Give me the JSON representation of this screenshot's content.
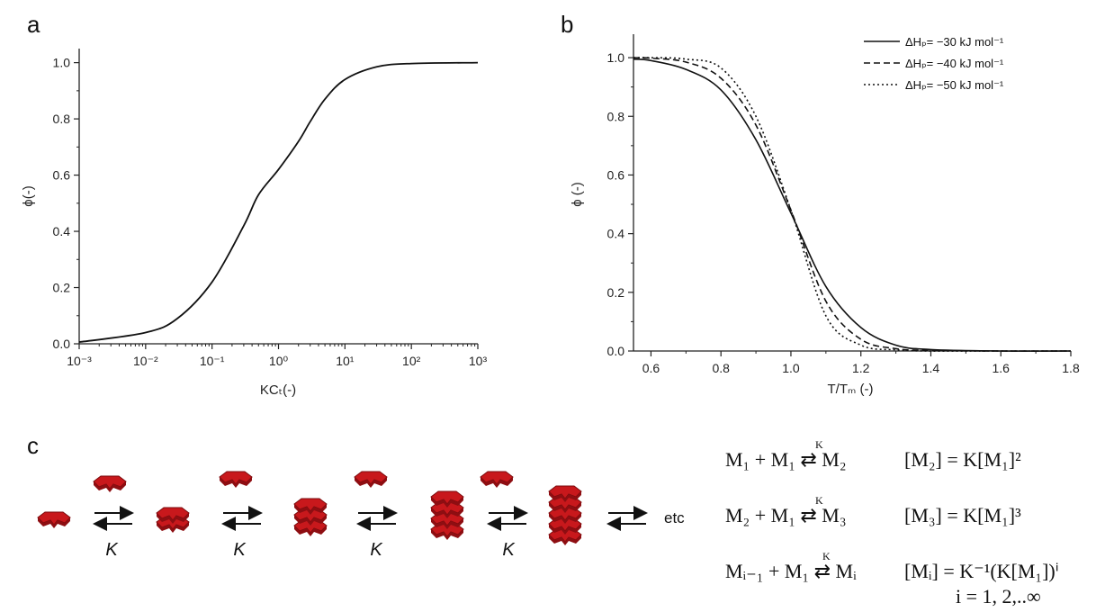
{
  "panels": {
    "a": "a",
    "b": "b",
    "c": "c"
  },
  "chart_data": [
    {
      "type": "line",
      "panel": "a",
      "xscale": "log",
      "xlim": [
        0.001,
        1000
      ],
      "ylim": [
        0,
        1.05
      ],
      "xlabel": "KCₜ(-)",
      "ylabel": "ϕ(-)",
      "xticks": [
        "10⁻³",
        "10⁻²",
        "10⁻¹",
        "10⁰",
        "10¹",
        "10²",
        "10³"
      ],
      "yticks": [
        "0.0",
        "0.2",
        "0.4",
        "0.6",
        "0.8",
        "1.0"
      ],
      "series": [
        {
          "x": [
            0.001,
            0.01,
            0.03,
            0.1,
            0.3,
            0.5,
            1,
            2,
            3,
            5,
            10,
            30,
            100,
            1000
          ],
          "y": [
            0.006,
            0.04,
            0.09,
            0.22,
            0.42,
            0.53,
            0.62,
            0.72,
            0.79,
            0.87,
            0.94,
            0.985,
            0.997,
            1.0
          ]
        }
      ]
    },
    {
      "type": "line",
      "panel": "b",
      "xlim": [
        0.55,
        1.8
      ],
      "ylim": [
        0,
        1.08
      ],
      "xlabel": "T/Tₘ (-)",
      "ylabel": "ϕ (-)",
      "xticks": [
        "0.6",
        "0.8",
        "1.0",
        "1.2",
        "1.4",
        "1.6",
        "1.8"
      ],
      "yticks": [
        "0.0",
        "0.2",
        "0.4",
        "0.6",
        "0.8",
        "1.0"
      ],
      "legend": "top-right",
      "series": [
        {
          "name": "ΔHₚ= −30 kJ mol⁻¹",
          "dash": "solid",
          "x": [
            0.55,
            0.6,
            0.7,
            0.8,
            0.9,
            1.0,
            1.1,
            1.2,
            1.3,
            1.4,
            1.6,
            1.8
          ],
          "y": [
            0.995,
            0.99,
            0.96,
            0.89,
            0.72,
            0.47,
            0.22,
            0.08,
            0.02,
            0.005,
            0.0,
            0.0
          ]
        },
        {
          "name": "ΔHₚ= −40 kJ mol⁻¹",
          "dash": "dashed",
          "x": [
            0.55,
            0.6,
            0.7,
            0.8,
            0.9,
            1.0,
            1.1,
            1.2,
            1.3,
            1.4,
            1.6,
            1.8
          ],
          "y": [
            1.0,
            0.998,
            0.985,
            0.93,
            0.77,
            0.48,
            0.17,
            0.04,
            0.008,
            0.002,
            0.0,
            0.0
          ]
        },
        {
          "name": "ΔHₚ= −50 kJ mol⁻¹",
          "dash": "dotted",
          "x": [
            0.55,
            0.6,
            0.7,
            0.8,
            0.9,
            1.0,
            1.1,
            1.2,
            1.3,
            1.4,
            1.6,
            1.8
          ],
          "y": [
            1.0,
            1.0,
            0.995,
            0.965,
            0.8,
            0.48,
            0.12,
            0.02,
            0.004,
            0.0,
            0.0,
            0.0
          ]
        }
      ]
    }
  ],
  "scheme": {
    "k_label": "K",
    "etc": "etc"
  },
  "equations": {
    "row1_left": "M₁ + M₁ ⇄ M₂",
    "row1_right": "[M₂] = K[M₁]²",
    "row2_left": "M₂ + M₁ ⇄ M₃",
    "row2_right": "[M₃] = K[M₁]³",
    "row3_left": "Mᵢ₋₁ + M₁ ⇄ Mᵢ",
    "row3_right": "[Mᵢ] = K⁻¹(K[M₁])ⁱ",
    "range": "i = 1, 2,..∞",
    "arrow_k": "K"
  }
}
